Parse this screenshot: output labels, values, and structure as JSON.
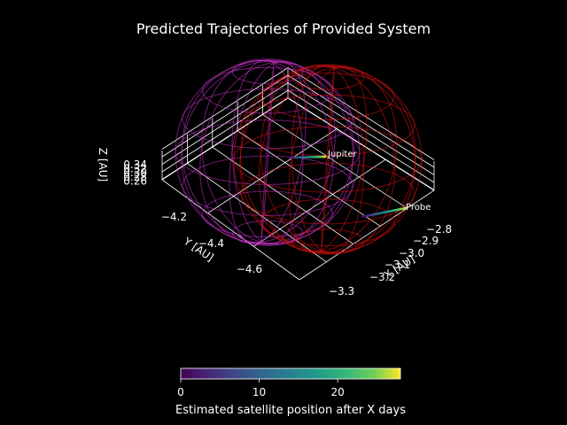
{
  "chart_data": {
    "type": "line",
    "projection": "3d",
    "title": "Predicted Trajectories of Provided System",
    "background": "#000000",
    "foreground": "#ffffff",
    "axes": {
      "x": {
        "label": "X [AU]",
        "ticks": [
          "−2.8",
          "−2.9",
          "−3.0",
          "−3.1",
          "−3.2",
          "−3.3"
        ],
        "range": [
          -3.3,
          -2.8
        ]
      },
      "y": {
        "label": "Y [AU]",
        "ticks": [
          "−4.2",
          "−4.4",
          "−4.6"
        ],
        "range": [
          -4.7,
          -4.1
        ]
      },
      "z": {
        "label": "Z [AU]",
        "ticks": [
          "0.34",
          "0.32",
          "0.30",
          "0.28",
          "0.26"
        ],
        "range": [
          0.26,
          0.34
        ]
      },
      "grid": true
    },
    "bodies": [
      {
        "label": "Jupiter",
        "color_note": "viridis",
        "path_days": [
          0,
          28
        ]
      },
      {
        "label": "Probe",
        "color_note": "viridis",
        "path_days": [
          0,
          28
        ]
      }
    ],
    "wireframes": [
      {
        "color": "#cc33cc"
      },
      {
        "color": "#e01010"
      }
    ],
    "colorbar": {
      "colormap": "viridis",
      "ticks": [
        "0",
        "10",
        "20"
      ],
      "range": [
        0,
        28
      ],
      "label": "Estimated satellite position after X days"
    }
  }
}
